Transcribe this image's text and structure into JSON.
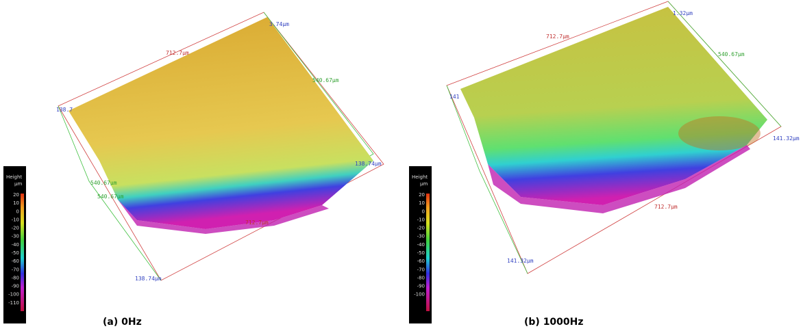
{
  "panels": [
    {
      "caption": "(a) 0Hz",
      "colorbar": {
        "title": "Height",
        "unit": "µm",
        "ticks": [
          "20",
          "10",
          "0",
          "-10",
          "-20",
          "-30",
          "-40",
          "-50",
          "-60",
          "-70",
          "-80",
          "-90",
          "-100",
          "-110"
        ]
      },
      "dimension_labels": [
        "712.7µm",
        "3.74µm",
        "540.67µm",
        "138.7",
        "138.74µm",
        "540.67µm",
        "540.67µm",
        "712.7µm",
        "138.74µm"
      ]
    },
    {
      "caption": "(b) 1000Hz",
      "colorbar": {
        "title": "Height",
        "unit": "µm",
        "ticks": [
          "20",
          "10",
          "0",
          "-10",
          "-20",
          "-30",
          "-40",
          "-50",
          "-60",
          "-70",
          "-80",
          "-90",
          "-100"
        ]
      },
      "dimension_labels": [
        "712.7µm",
        "1.32µm",
        "540.67µm",
        "141",
        "141.32µm",
        "712.7µm",
        "141.32µm"
      ]
    }
  ]
}
